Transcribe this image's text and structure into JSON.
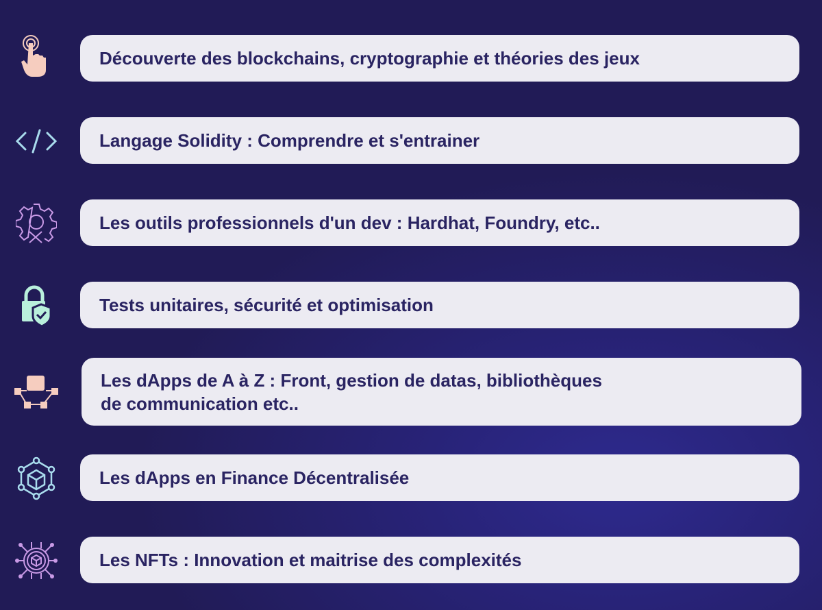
{
  "items": [
    {
      "label": "Découverte des blockchains, cryptographie et théories des jeux",
      "icon": "hand-touch-icon"
    },
    {
      "label": "Langage Solidity : Comprendre et s'entrainer",
      "icon": "code-icon"
    },
    {
      "label": "Les outils professionnels d'un dev : Hardhat, Foundry, etc..",
      "icon": "gear-tools-icon"
    },
    {
      "label": "Tests unitaires, sécurité et optimisation",
      "icon": "lock-shield-icon"
    },
    {
      "label": "Les dApps de A à Z : Front, gestion de datas, bibliothèques",
      "label2": "de communication etc..",
      "icon": "network-nodes-icon"
    },
    {
      "label": "Les dApps en Finance Décentralisée",
      "icon": "cube-hexagon-icon"
    },
    {
      "label": "Les NFTs : Innovation et maitrise des complexités",
      "icon": "cube-circuit-icon"
    }
  ],
  "colors": {
    "background": "#211b56",
    "pill": "#ecebf2",
    "text": "#2a2462",
    "peach": "#f6cdbf",
    "cyan": "#a9dced",
    "violet": "#c99ae6",
    "mint": "#b9f0dc"
  }
}
